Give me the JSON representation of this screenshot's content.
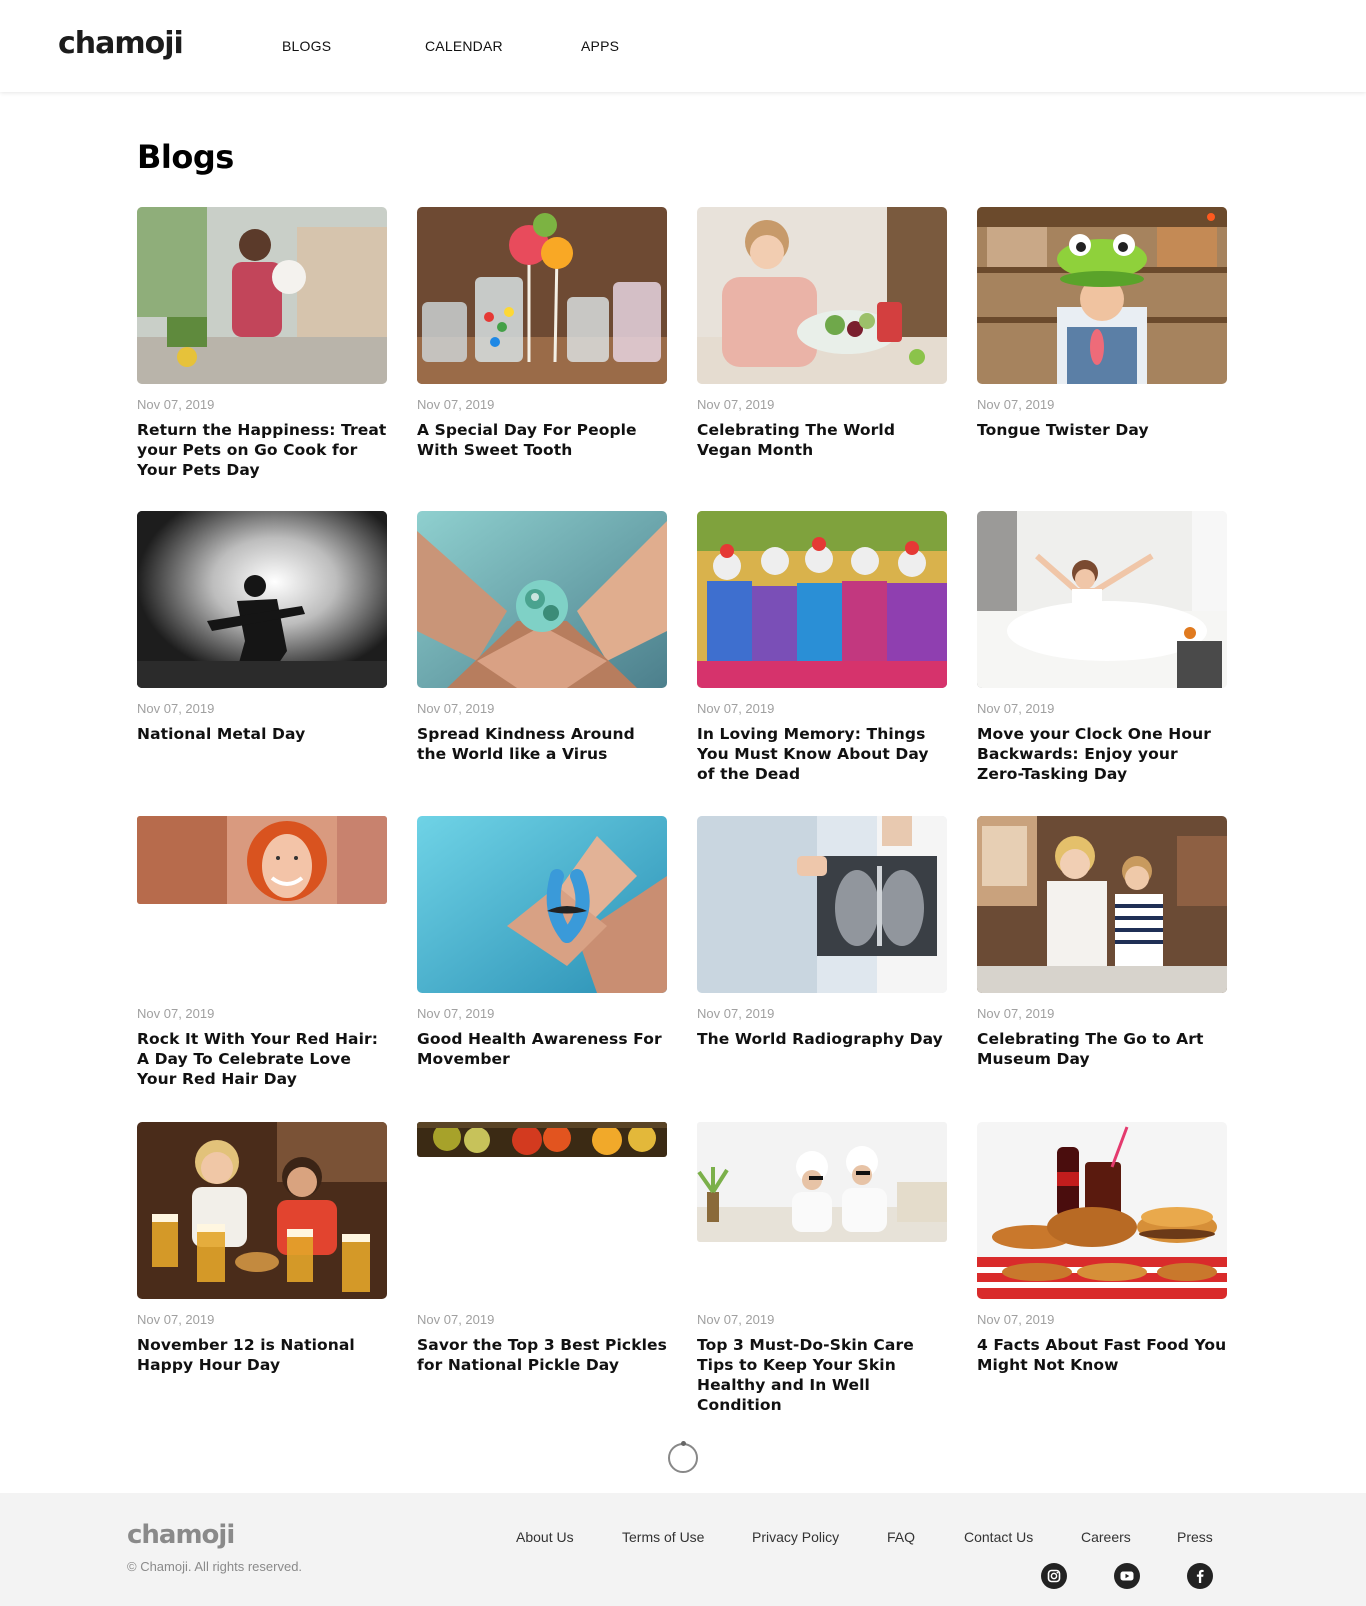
{
  "brand": {
    "logo": "chamoji",
    "accent": "#ff5a1f"
  },
  "nav": {
    "items": [
      "BLOGS",
      "CALENDAR",
      "APPS"
    ]
  },
  "page": {
    "title": "Blogs"
  },
  "posts": [
    {
      "date": "Nov 07, 2019",
      "title": "Return the Happiness: Treat your Pets on Go Cook for Your Pets Day",
      "image": "woman-holding-puppy-in-kitchen"
    },
    {
      "date": "Nov 07, 2019",
      "title": "A Special Day For People With Sweet Tooth",
      "image": "candy-jars-and-lollipops"
    },
    {
      "date": "Nov 07, 2019",
      "title": "Celebrating The World Vegan Month",
      "image": "woman-eating-salad"
    },
    {
      "date": "Nov 07, 2019",
      "title": "Tongue Twister Day",
      "image": "girl-with-frog-hat-sticking-tongue"
    },
    {
      "date": "Nov 07, 2019",
      "title": "National Metal Day",
      "image": "guitarist-silhouette-on-stage"
    },
    {
      "date": "Nov 07, 2019",
      "title": "Spread Kindness Around the World like a Virus",
      "image": "hands-holding-globe"
    },
    {
      "date": "Nov 07, 2019",
      "title": "In Loving Memory: Things You Must Know About Day of the Dead",
      "image": "day-of-the-dead-parade"
    },
    {
      "date": "Nov 07, 2019",
      "title": "Move your Clock One Hour Backwards: Enjoy your Zero-Tasking Day",
      "image": "woman-stretching-in-bed"
    },
    {
      "date": "Nov 07, 2019",
      "title": "Rock It With Your Red Hair: A Day To Celebrate Love Your Red Hair Day",
      "image": "smiling-red-haired-woman"
    },
    {
      "date": "Nov 07, 2019",
      "title": "Good Health Awareness For Movember",
      "image": "hands-holding-blue-ribbon"
    },
    {
      "date": "Nov 07, 2019",
      "title": "The World Radiography Day",
      "image": "doctor-holding-chest-xray"
    },
    {
      "date": "Nov 07, 2019",
      "title": "Celebrating The Go to Art Museum Day",
      "image": "women-in-art-museum"
    },
    {
      "date": "Nov 07, 2019",
      "title": "November 12 is National Happy Hour Day",
      "image": "friends-with-beers-in-pub"
    },
    {
      "date": "Nov 07, 2019",
      "title": "Savor the Top 3 Best Pickles for National Pickle Day",
      "image": "pickle-jars"
    },
    {
      "date": "Nov 07, 2019",
      "title": "Top 3 Must-Do-Skin Care Tips to Keep Your Skin Healthy and In Well Condition",
      "image": "women-with-towel-turbans"
    },
    {
      "date": "Nov 07, 2019",
      "title": "4 Facts About Fast Food You Might Not Know",
      "image": "burgers-fried-chicken-and-cola"
    }
  ],
  "footer": {
    "logo": "chamoji",
    "copyright": "© Chamoji. All rights reserved.",
    "links": [
      "About Us",
      "Terms of Use",
      "Privacy Policy",
      "FAQ",
      "Contact Us",
      "Careers",
      "Press"
    ],
    "social": [
      "instagram-icon",
      "youtube-icon",
      "facebook-icon"
    ]
  }
}
